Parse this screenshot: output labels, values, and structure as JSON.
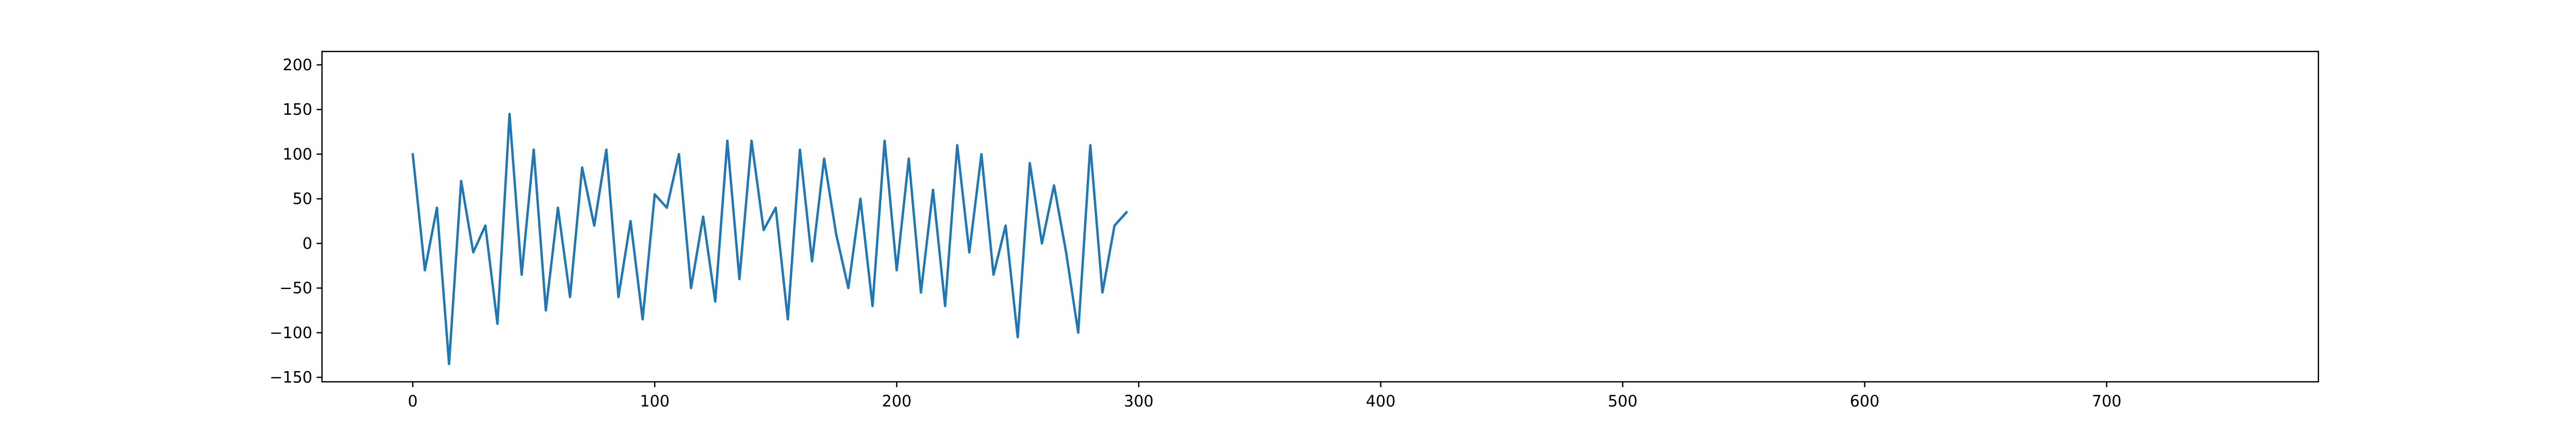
{
  "chart_data": {
    "type": "line",
    "title": "",
    "xlabel": "",
    "ylabel": "",
    "xlim": [
      -37.5,
      787.5
    ],
    "ylim": [
      -155,
      215
    ],
    "grid": false,
    "line_color": "#1f77b4",
    "x_ticks": [
      0,
      100,
      200,
      300,
      400,
      500,
      600,
      700
    ],
    "y_ticks": [
      -150,
      -100,
      -50,
      0,
      50,
      100,
      150,
      200
    ],
    "x_tick_labels": [
      "0",
      "100",
      "200",
      "300",
      "400",
      "500",
      "600",
      "700"
    ],
    "y_tick_labels": [
      "−150",
      "−100",
      "−50",
      "0",
      "50",
      "100",
      "150",
      "200"
    ],
    "series": [
      {
        "name": "",
        "x_start": 0,
        "x_step": 5,
        "values": [
          100,
          -30,
          40,
          -135,
          70,
          -10,
          20,
          -90,
          145,
          -35,
          105,
          -75,
          40,
          -60,
          85,
          20,
          105,
          -60,
          25,
          -85,
          55,
          40,
          100,
          -50,
          30,
          -65,
          115,
          -40,
          115,
          15,
          40,
          -85,
          105,
          -20,
          95,
          10,
          -50,
          50,
          -70,
          115,
          -30,
          95,
          -55,
          60,
          -70,
          110,
          -10,
          100,
          -35,
          20,
          -105,
          90,
          0,
          65,
          -10,
          -100,
          110,
          -55,
          20,
          35
        ]
      }
    ]
  }
}
